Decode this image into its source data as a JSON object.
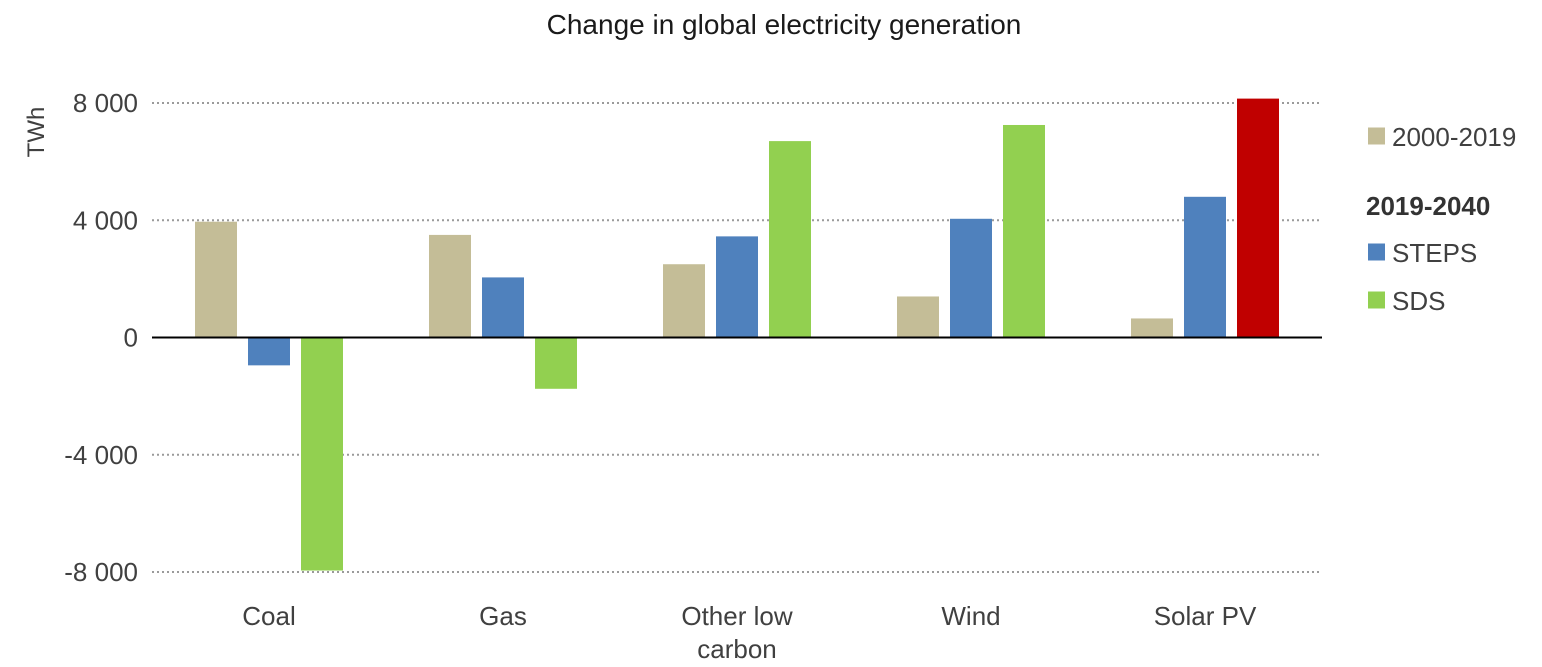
{
  "chart_data": {
    "type": "bar",
    "title": "Change in global electricity generation",
    "ylabel": "TWh",
    "xlabel": "",
    "ylim": [
      -8000,
      8000
    ],
    "yticks": [
      8000,
      4000,
      0,
      -4000,
      -8000
    ],
    "ytick_labels": [
      "8 000",
      "4 000",
      "0",
      "-4 000",
      "-8 000"
    ],
    "categories": [
      "Coal",
      "Gas",
      "Other low carbon",
      "Wind",
      "Solar PV"
    ],
    "category_lines": [
      [
        "Coal"
      ],
      [
        "Gas"
      ],
      [
        "Other low",
        "carbon"
      ],
      [
        "Wind"
      ],
      [
        "Solar PV"
      ]
    ],
    "grid": true,
    "legend_position": "right",
    "legend_group_heading": "2019-2040",
    "series": [
      {
        "name": "2000-2019",
        "color": "#c4bd97",
        "values": [
          3950,
          3500,
          2500,
          1400,
          650
        ]
      },
      {
        "name": "STEPS",
        "color": "#4f81bd",
        "values": [
          -950,
          2050,
          3450,
          4050,
          4800
        ]
      },
      {
        "name": "SDS",
        "color": "#92d050",
        "values": [
          -7950,
          -1750,
          6700,
          7250,
          8150
        ]
      }
    ],
    "highlight": {
      "series_index": 2,
      "category_index": 4,
      "color": "#c00000"
    }
  }
}
